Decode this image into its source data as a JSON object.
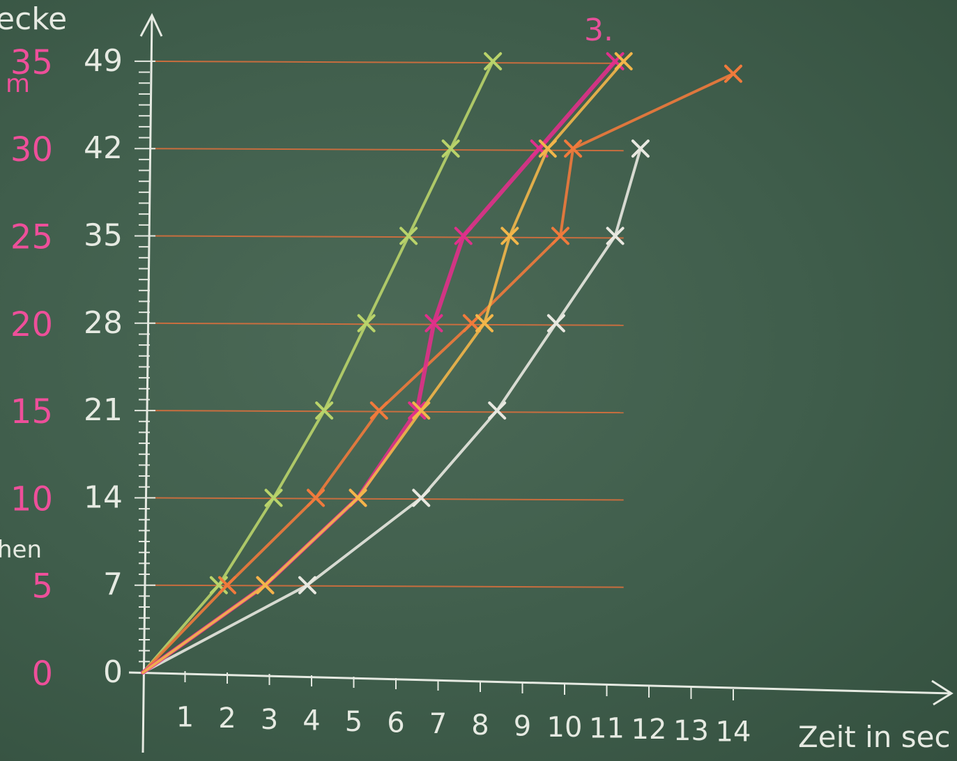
{
  "chart_data": {
    "type": "line",
    "title": "",
    "ylabel": "ecke",
    "ylabel_unit": "m",
    "left_fragment": "hen",
    "top_marker": "3.",
    "xlabel": "Zeit in sec",
    "xlim": [
      0,
      14
    ],
    "ylim": [
      0,
      49
    ],
    "x_ticks": [
      "1",
      "2",
      "3",
      "4",
      "5",
      "6",
      "7",
      "8",
      "9",
      "10",
      "11",
      "12",
      "13",
      "14"
    ],
    "y_ticks": [
      "0",
      "7",
      "14",
      "21",
      "28",
      "35",
      "42",
      "49"
    ],
    "y_ticks_secondary": [
      "0",
      "5",
      "10",
      "15",
      "20",
      "25",
      "30",
      "35"
    ],
    "reference_lines_y": [
      7,
      14,
      21,
      28,
      35,
      42,
      49
    ],
    "series": [
      {
        "color": "#b9d36a",
        "x": [
          0,
          1.8,
          3.1,
          4.3,
          5.3,
          6.3,
          7.3,
          8.3
        ],
        "y": [
          0,
          7,
          14,
          21,
          28,
          35,
          42,
          49
        ]
      },
      {
        "color": "#e8e8e0",
        "x": [
          0,
          3.9,
          6.6,
          8.4,
          9.8,
          11.2,
          11.8
        ],
        "y": [
          0,
          7,
          14,
          21,
          28,
          35,
          42
        ]
      },
      {
        "color": "#f07a3c",
        "x": [
          0,
          2.0,
          4.1,
          5.6,
          7.8,
          9.9,
          10.2,
          14.0
        ],
        "y": [
          0,
          7,
          14,
          21,
          28,
          35,
          42,
          48
        ]
      },
      {
        "color": "#e0308a",
        "x": [
          0,
          2.9,
          5.1,
          6.5,
          6.9,
          7.6,
          9.4,
          11.2
        ],
        "y": [
          0,
          7,
          14,
          21,
          28,
          35,
          42,
          49
        ]
      },
      {
        "color": "#f2b64a",
        "x": [
          0,
          2.9,
          5.1,
          6.6,
          8.1,
          8.7,
          9.6,
          11.4
        ],
        "y": [
          0,
          7,
          14,
          21,
          28,
          35,
          42,
          49
        ]
      }
    ]
  }
}
